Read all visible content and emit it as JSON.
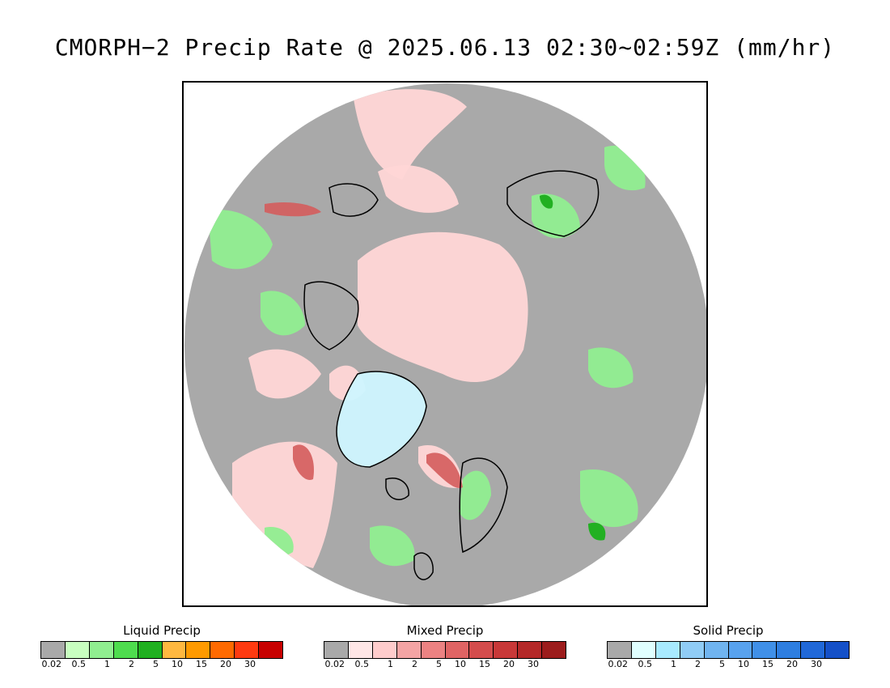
{
  "title": "CMORPH−2 Precip Rate @ 2025.06.13 02:30~02:59Z (mm/hr)",
  "map": {
    "background_color": "#a9a9a9",
    "coastline_color": "#000000",
    "liquid_color": "#90ee90",
    "liquid_dark_color": "#22b022",
    "mixed_color": "#ffd6d6",
    "mixed_dark_color": "#d45c5c",
    "solid_color": "#cff6ff"
  },
  "legends": [
    {
      "title": "Liquid Precip",
      "colors": [
        "#a9a9a9",
        "#c8ffc0",
        "#90ee90",
        "#4edc4e",
        "#20b020",
        "#ffb840",
        "#ff9a00",
        "#ff6a00",
        "#ff3a10",
        "#c80000"
      ],
      "ticks": [
        "0.02",
        "0.5",
        "1",
        "2",
        "5",
        "10",
        "15",
        "20",
        "30",
        ""
      ]
    },
    {
      "title": "Mixed Precip",
      "colors": [
        "#a9a9a9",
        "#ffe6e6",
        "#ffcccc",
        "#f4a4a4",
        "#ec8282",
        "#e06464",
        "#d44c4c",
        "#c83838",
        "#b42828",
        "#9c1c1c"
      ],
      "ticks": [
        "0.02",
        "0.5",
        "1",
        "2",
        "5",
        "10",
        "15",
        "20",
        "30",
        ""
      ]
    },
    {
      "title": "Solid Precip",
      "colors": [
        "#a9a9a9",
        "#e0ffff",
        "#a8eaff",
        "#90ccf6",
        "#70b4f0",
        "#58a2ee",
        "#4090e8",
        "#2e7ee0",
        "#2068d8",
        "#1450c8"
      ],
      "ticks": [
        "0.02",
        "0.5",
        "1",
        "2",
        "5",
        "10",
        "15",
        "20",
        "30",
        ""
      ]
    }
  ]
}
